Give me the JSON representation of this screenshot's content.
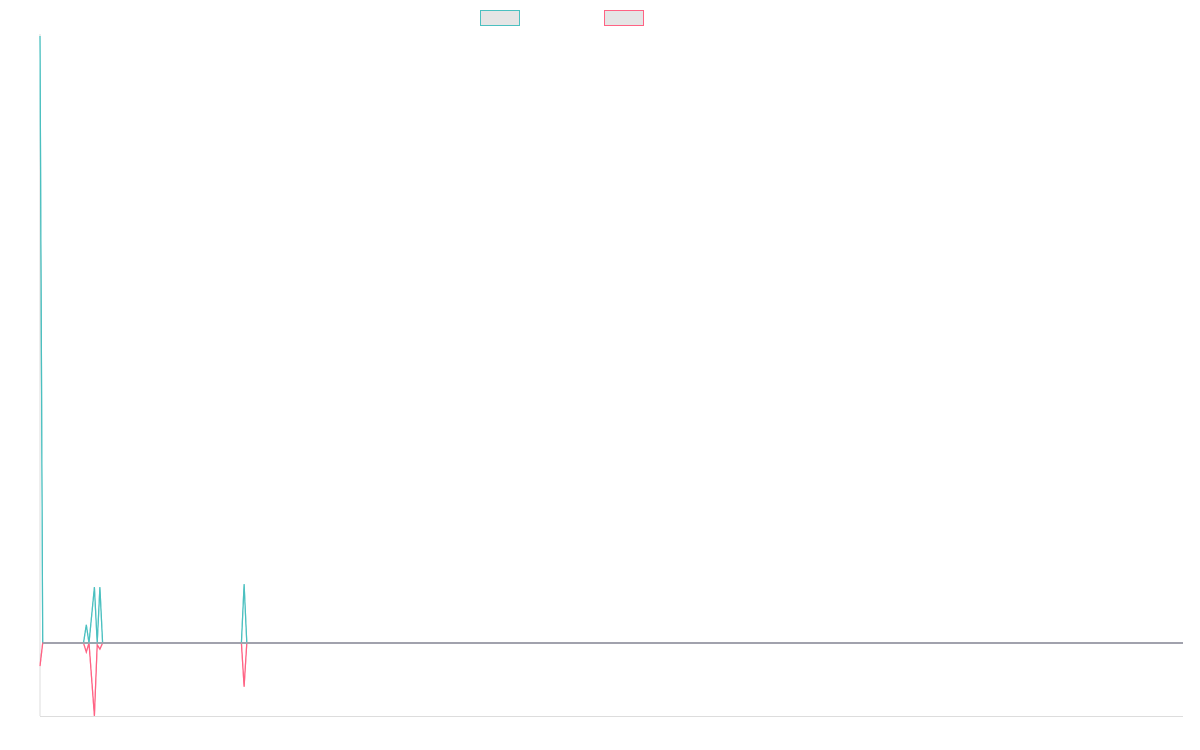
{
  "chart_data": {
    "type": "line",
    "title": "",
    "xlabel": "",
    "ylabel": "",
    "xlim": [
      0,
      420
    ],
    "ylim": [
      -12,
      100
    ],
    "grid": false,
    "legend_placement": "top-center",
    "zero_line": true,
    "colors": {
      "zero_line": "#9aa7b0",
      "axis": "#dddddd"
    },
    "series": [
      {
        "color": "#4bc0c0",
        "points": [
          [
            0,
            100
          ],
          [
            1,
            0
          ],
          [
            16,
            0
          ],
          [
            17,
            3.0
          ],
          [
            18,
            0
          ],
          [
            20,
            9.2
          ],
          [
            21,
            0
          ],
          [
            22,
            9.2
          ],
          [
            23,
            0
          ],
          [
            74,
            0
          ],
          [
            75,
            9.7
          ],
          [
            76,
            0
          ],
          [
            420,
            0
          ]
        ]
      },
      {
        "color": "#ff6384",
        "points": [
          [
            0,
            -3.8
          ],
          [
            1,
            0
          ],
          [
            16,
            0
          ],
          [
            17,
            -1.5
          ],
          [
            18,
            0
          ],
          [
            20,
            -12
          ],
          [
            21,
            -0.3
          ],
          [
            22,
            -1.0
          ],
          [
            23,
            0
          ],
          [
            74,
            0
          ],
          [
            75,
            -7.2
          ],
          [
            76,
            0
          ],
          [
            420,
            0
          ]
        ]
      }
    ]
  }
}
